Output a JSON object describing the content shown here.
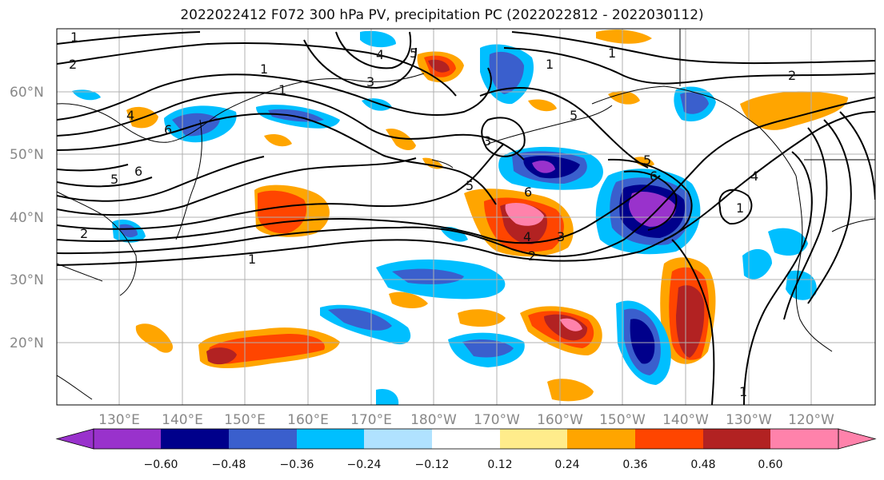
{
  "title": "2022022412 F072 300 hPa PV, precipitation PC (2022022812 - 2022030112)",
  "map": {
    "lat_labels": [
      "60°N",
      "50°N",
      "40°N",
      "30°N",
      "20°N"
    ],
    "lon_labels": [
      "130°E",
      "140°E",
      "150°E",
      "160°E",
      "170°E",
      "180°W",
      "170°W",
      "160°W",
      "150°W",
      "140°W",
      "130°W",
      "120°W"
    ],
    "contour_labels": [
      "1",
      "2",
      "1",
      "1",
      "3",
      "4",
      "5",
      "6",
      "5",
      "6",
      "1",
      "2",
      "3",
      "4",
      "5",
      "1",
      "2",
      "3",
      "4",
      "6",
      "6",
      "5",
      "5",
      "1",
      "1",
      "2",
      "4",
      "1"
    ]
  },
  "colorbar": {
    "colors": [
      "#9932cc",
      "#00008b",
      "#3a5fcd",
      "#00bfff",
      "#b0e2ff",
      "#ffffff",
      "#ffec8b",
      "#ffa500",
      "#ff4500",
      "#b22222",
      "#ff82ab"
    ],
    "ticks": [
      "−0.60",
      "−0.48",
      "−0.36",
      "−0.24",
      "−0.12",
      "0.12",
      "0.24",
      "0.36",
      "0.48",
      "0.60"
    ]
  }
}
